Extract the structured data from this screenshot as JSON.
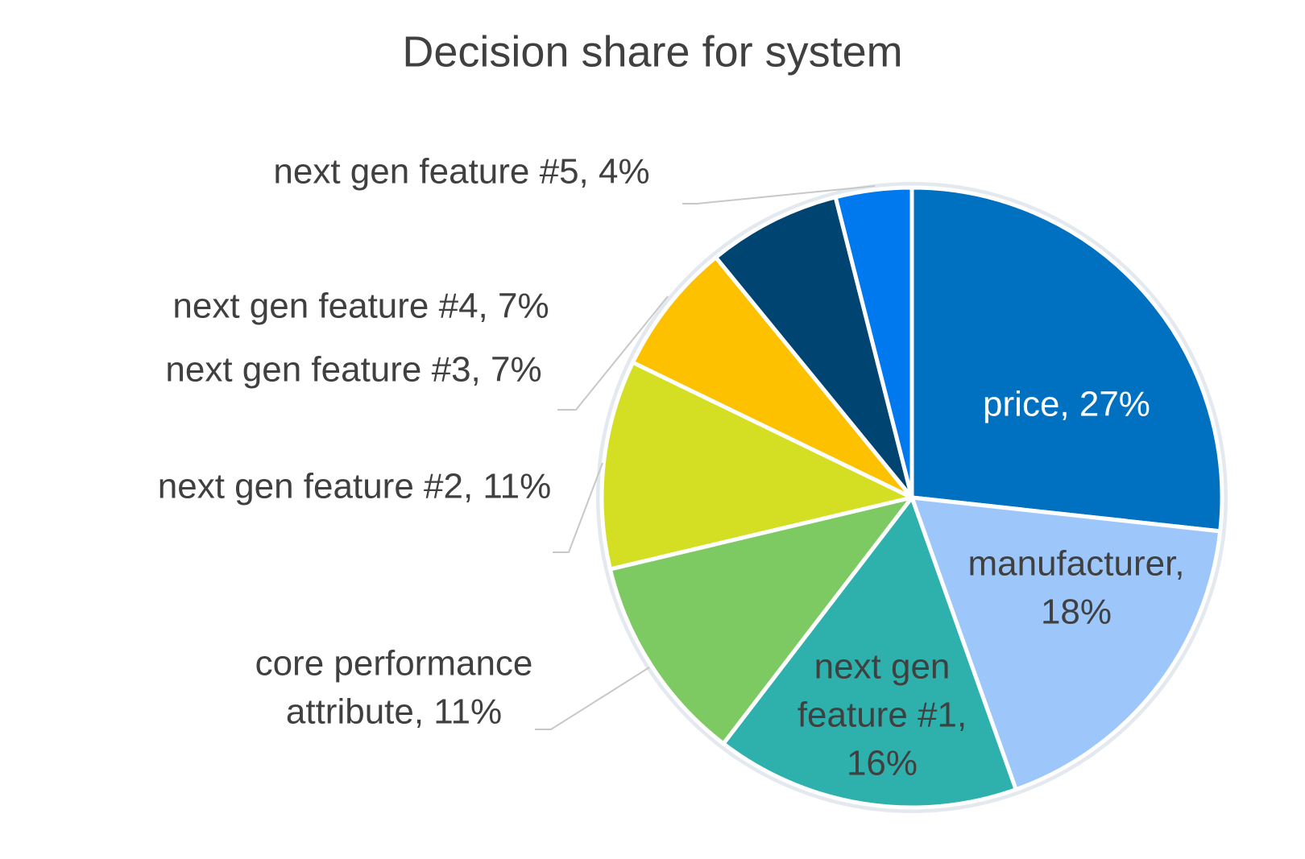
{
  "chart_data": {
    "type": "pie",
    "title": "Decision share for system",
    "values": [
      27,
      18,
      16,
      11,
      11,
      7,
      7,
      4
    ],
    "value_labels": [
      [
        "price, 27%"
      ],
      [
        "manufacturer,",
        "18%"
      ],
      [
        "next gen",
        "feature #1,",
        "16%"
      ],
      [
        "core performance",
        "attribute, 11%"
      ],
      [
        "next gen feature #2, 11%"
      ],
      [
        "next gen feature #3, 7%"
      ],
      [
        "next gen feature #4, 7%"
      ],
      [
        "next gen feature #5, 4%"
      ]
    ],
    "colors": [
      "#0070c0",
      "#9dc7fa",
      "#2eb1ad",
      "#7dca62",
      "#d4de22",
      "#fdc100",
      "#004472",
      "#0078ee"
    ]
  }
}
